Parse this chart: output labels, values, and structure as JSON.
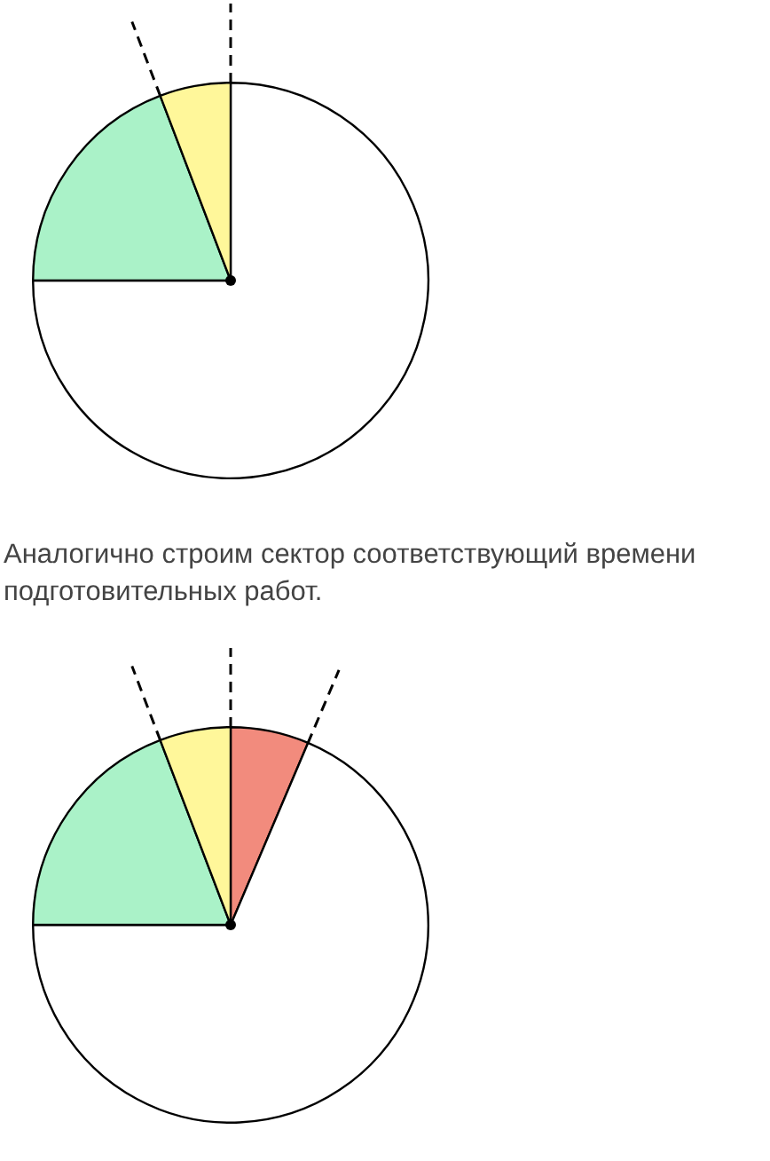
{
  "chart_data": [
    {
      "type": "pie",
      "categories": [
        null,
        null,
        null
      ],
      "values": [
        75,
        19.2,
        5.8
      ],
      "colors": [
        "#ffffff",
        "#aaf2c8",
        "#fff79a"
      ],
      "annotations": [
        "Аналогично строим сектор соответствующий времени подготовительных работ."
      ]
    },
    {
      "type": "pie",
      "categories": [
        null,
        null,
        null,
        null
      ],
      "values": [
        6.4,
        68.6,
        19.2,
        5.8
      ],
      "colors": [
        "#f28b7d",
        "#ffffff",
        "#aaf2c8",
        "#fff79a"
      ]
    }
  ]
}
